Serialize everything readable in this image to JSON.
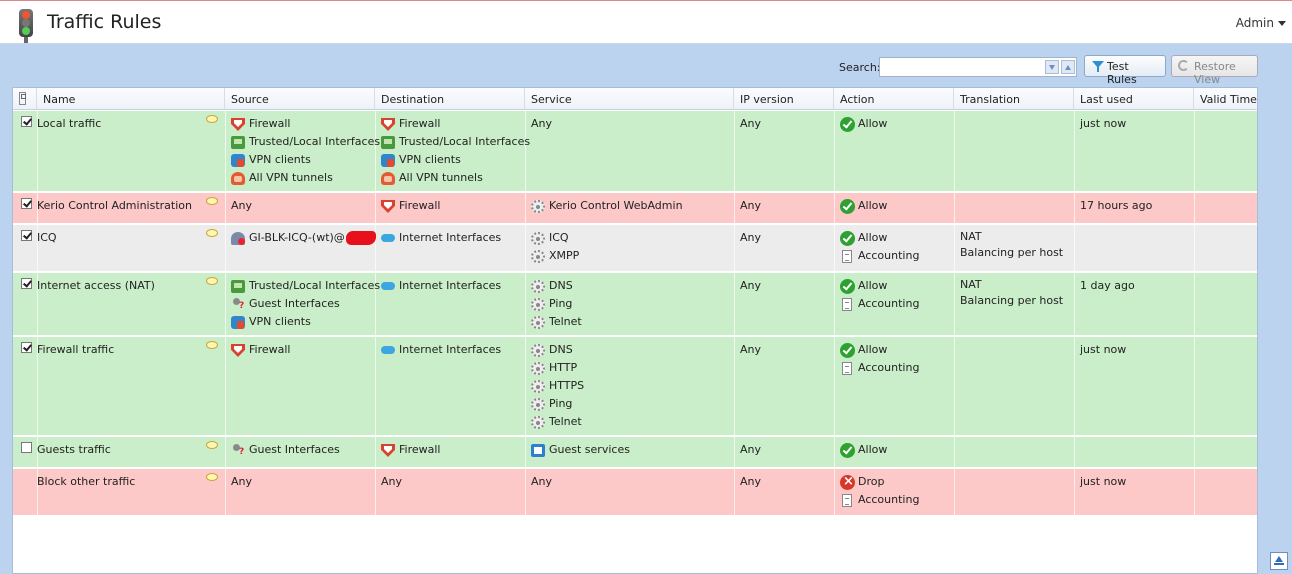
{
  "header": {
    "title": "Traffic Rules",
    "user": "Admin"
  },
  "toolbar": {
    "search_label": "Search:",
    "search_value": "",
    "test_rules": "Test Rules",
    "restore_view": "Restore View"
  },
  "columns": [
    "Name",
    "Source",
    "Destination",
    "Service",
    "IP version",
    "Action",
    "Translation",
    "Last used",
    "Valid Time"
  ],
  "rows": [
    {
      "name": "Local traffic",
      "checked": true,
      "color": "green",
      "source": [
        [
          "shield",
          "Firewall"
        ],
        [
          "net",
          "Trusted/Local Interfaces"
        ],
        [
          "vpn",
          "VPN clients"
        ],
        [
          "tunnels",
          "All VPN tunnels"
        ]
      ],
      "destination": [
        [
          "shield",
          "Firewall"
        ],
        [
          "net",
          "Trusted/Local Interfaces"
        ],
        [
          "vpn",
          "VPN clients"
        ],
        [
          "tunnels",
          "All VPN tunnels"
        ]
      ],
      "service": [
        [
          "",
          "Any"
        ]
      ],
      "ip_version": "Any",
      "action": [
        [
          "allow",
          "Allow"
        ]
      ],
      "translation": [],
      "last_used": "just now"
    },
    {
      "name": "Kerio Control Administration",
      "checked": true,
      "color": "red",
      "source": [
        [
          "",
          "Any"
        ]
      ],
      "destination": [
        [
          "shield",
          "Firewall"
        ]
      ],
      "service": [
        [
          "gear",
          "Kerio Control WebAdmin"
        ]
      ],
      "ip_version": "Any",
      "action": [
        [
          "allow",
          "Allow"
        ]
      ],
      "translation": [],
      "last_used": "17 hours ago"
    },
    {
      "name": "ICQ",
      "checked": true,
      "color": "grey",
      "source": [
        [
          "user-group",
          "GI-BLK-ICQ-(wt)@"
        ]
      ],
      "destination": [
        [
          "cloud",
          "Internet Interfaces"
        ]
      ],
      "service": [
        [
          "gear",
          "ICQ"
        ],
        [
          "gear",
          "XMPP"
        ]
      ],
      "ip_version": "Any",
      "action": [
        [
          "allow",
          "Allow"
        ],
        [
          "doc",
          "Accounting"
        ]
      ],
      "translation": [
        "NAT",
        "Balancing per host"
      ],
      "last_used": ""
    },
    {
      "name": "Internet access (NAT)",
      "checked": true,
      "color": "green",
      "source": [
        [
          "net",
          "Trusted/Local Interfaces"
        ],
        [
          "guest",
          "Guest Interfaces"
        ],
        [
          "vpn",
          "VPN clients"
        ]
      ],
      "destination": [
        [
          "cloud",
          "Internet Interfaces"
        ]
      ],
      "service": [
        [
          "gear",
          "DNS"
        ],
        [
          "gear",
          "Ping"
        ],
        [
          "gear",
          "Telnet"
        ]
      ],
      "ip_version": "Any",
      "action": [
        [
          "allow",
          "Allow"
        ],
        [
          "doc",
          "Accounting"
        ]
      ],
      "translation": [
        "NAT",
        "Balancing per host"
      ],
      "last_used": "1 day ago"
    },
    {
      "name": "Firewall traffic",
      "checked": true,
      "color": "green",
      "source": [
        [
          "shield",
          "Firewall"
        ]
      ],
      "destination": [
        [
          "cloud",
          "Internet Interfaces"
        ]
      ],
      "service": [
        [
          "gear",
          "DNS"
        ],
        [
          "gear",
          "HTTP"
        ],
        [
          "gear",
          "HTTPS"
        ],
        [
          "gear",
          "Ping"
        ],
        [
          "gear",
          "Telnet"
        ]
      ],
      "ip_version": "Any",
      "action": [
        [
          "allow",
          "Allow"
        ],
        [
          "doc",
          "Accounting"
        ]
      ],
      "translation": [],
      "last_used": "just now"
    },
    {
      "name": "Guests traffic",
      "checked": false,
      "color": "green",
      "source": [
        [
          "guest",
          "Guest Interfaces"
        ]
      ],
      "destination": [
        [
          "shield",
          "Firewall"
        ]
      ],
      "service": [
        [
          "service-guest",
          "Guest services"
        ]
      ],
      "ip_version": "Any",
      "action": [
        [
          "allow",
          "Allow"
        ]
      ],
      "translation": [],
      "last_used": ""
    },
    {
      "name": "Block other traffic",
      "checked": null,
      "color": "red",
      "source": [
        [
          "",
          "Any"
        ]
      ],
      "destination": [
        [
          "",
          "Any"
        ]
      ],
      "service": [
        [
          "",
          "Any"
        ]
      ],
      "ip_version": "Any",
      "action": [
        [
          "drop",
          "Drop"
        ],
        [
          "doc",
          "Accounting"
        ]
      ],
      "translation": [],
      "last_used": "just now"
    }
  ]
}
